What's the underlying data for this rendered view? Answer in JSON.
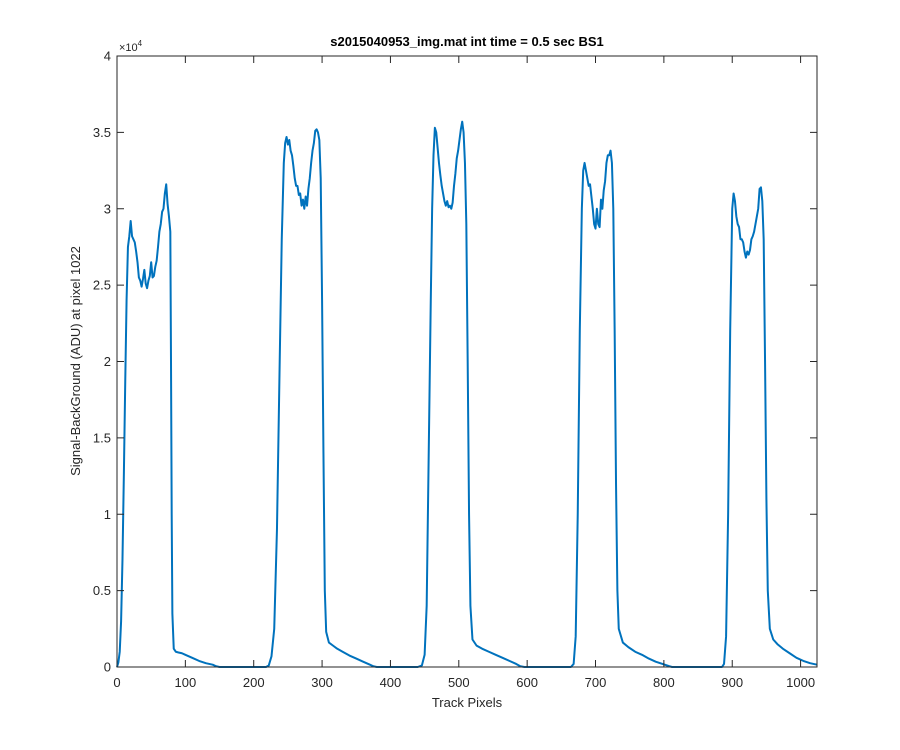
{
  "chart_data": {
    "type": "line",
    "title": "s2015040953_img.mat int time = 0.5 sec   BS1",
    "xlabel": "Track Pixels",
    "ylabel": "Signal-BackGround (ADU) at pixel 1022",
    "xlim": [
      0,
      1024
    ],
    "ylim": [
      0,
      40000
    ],
    "xticks": [
      0,
      100,
      200,
      300,
      400,
      500,
      600,
      700,
      800,
      900,
      1000
    ],
    "xtick_labels": [
      "0",
      "100",
      "200",
      "300",
      "400",
      "500",
      "600",
      "700",
      "800",
      "900",
      "1000"
    ],
    "yticks": [
      0,
      5000,
      10000,
      15000,
      20000,
      25000,
      30000,
      35000,
      40000
    ],
    "ytick_labels": [
      "0",
      "0.5",
      "1",
      "1.5",
      "2",
      "2.5",
      "3",
      "3.5",
      "4"
    ],
    "y_exponent_label": "×10",
    "y_exponent_power": "4",
    "grid": false,
    "series": [
      {
        "color": "#0072BD",
        "points": [
          [
            0,
            0
          ],
          [
            2,
            300
          ],
          [
            4,
            1000
          ],
          [
            6,
            3000
          ],
          [
            8,
            7000
          ],
          [
            10,
            12500
          ],
          [
            12,
            18500
          ],
          [
            14,
            24000
          ],
          [
            16,
            27500
          ],
          [
            18,
            28200
          ],
          [
            20,
            29200
          ],
          [
            22,
            28200
          ],
          [
            24,
            28000
          ],
          [
            26,
            27800
          ],
          [
            28,
            27200
          ],
          [
            30,
            26500
          ],
          [
            32,
            25500
          ],
          [
            34,
            25300
          ],
          [
            36,
            24900
          ],
          [
            38,
            25400
          ],
          [
            40,
            26000
          ],
          [
            42,
            25100
          ],
          [
            44,
            24800
          ],
          [
            46,
            25300
          ],
          [
            48,
            25600
          ],
          [
            50,
            26500
          ],
          [
            52,
            25500
          ],
          [
            54,
            25600
          ],
          [
            56,
            26200
          ],
          [
            58,
            26600
          ],
          [
            60,
            27500
          ],
          [
            62,
            28500
          ],
          [
            64,
            29000
          ],
          [
            66,
            29800
          ],
          [
            68,
            30000
          ],
          [
            70,
            31000
          ],
          [
            72,
            31600
          ],
          [
            74,
            30300
          ],
          [
            76,
            29500
          ],
          [
            78,
            28500
          ],
          [
            79,
            20000
          ],
          [
            80,
            10000
          ],
          [
            81,
            3500
          ],
          [
            83,
            1200
          ],
          [
            86,
            1000
          ],
          [
            90,
            950
          ],
          [
            95,
            900
          ],
          [
            100,
            800
          ],
          [
            110,
            600
          ],
          [
            120,
            400
          ],
          [
            130,
            250
          ],
          [
            140,
            150
          ],
          [
            145,
            50
          ],
          [
            150,
            0
          ],
          [
            218,
            0
          ],
          [
            222,
            100
          ],
          [
            226,
            700
          ],
          [
            230,
            2500
          ],
          [
            234,
            9000
          ],
          [
            238,
            20000
          ],
          [
            241,
            28000
          ],
          [
            244,
            33000
          ],
          [
            246,
            34300
          ],
          [
            248,
            34700
          ],
          [
            250,
            34200
          ],
          [
            252,
            34500
          ],
          [
            254,
            33800
          ],
          [
            256,
            33500
          ],
          [
            258,
            32800
          ],
          [
            260,
            32000
          ],
          [
            262,
            31500
          ],
          [
            264,
            31500
          ],
          [
            266,
            30900
          ],
          [
            268,
            31000
          ],
          [
            270,
            30200
          ],
          [
            272,
            30600
          ],
          [
            274,
            30000
          ],
          [
            276,
            30800
          ],
          [
            278,
            30200
          ],
          [
            280,
            31300
          ],
          [
            282,
            32000
          ],
          [
            284,
            33000
          ],
          [
            286,
            33800
          ],
          [
            288,
            34300
          ],
          [
            290,
            35100
          ],
          [
            292,
            35200
          ],
          [
            294,
            35000
          ],
          [
            296,
            34500
          ],
          [
            298,
            32000
          ],
          [
            300,
            24000
          ],
          [
            302,
            14000
          ],
          [
            304,
            5000
          ],
          [
            306,
            2300
          ],
          [
            310,
            1600
          ],
          [
            316,
            1400
          ],
          [
            322,
            1200
          ],
          [
            330,
            1000
          ],
          [
            340,
            750
          ],
          [
            350,
            550
          ],
          [
            360,
            350
          ],
          [
            370,
            150
          ],
          [
            375,
            50
          ],
          [
            380,
            0
          ],
          [
            440,
            0
          ],
          [
            446,
            100
          ],
          [
            450,
            800
          ],
          [
            453,
            4000
          ],
          [
            456,
            14000
          ],
          [
            459,
            24000
          ],
          [
            461,
            30000
          ],
          [
            463,
            33500
          ],
          [
            465,
            35300
          ],
          [
            467,
            35000
          ],
          [
            469,
            34000
          ],
          [
            471,
            33000
          ],
          [
            473,
            32200
          ],
          [
            475,
            31500
          ],
          [
            477,
            31000
          ],
          [
            479,
            30500
          ],
          [
            481,
            30200
          ],
          [
            483,
            30500
          ],
          [
            485,
            30100
          ],
          [
            487,
            30200
          ],
          [
            489,
            30000
          ],
          [
            491,
            30400
          ],
          [
            493,
            31500
          ],
          [
            495,
            32300
          ],
          [
            497,
            33300
          ],
          [
            499,
            33800
          ],
          [
            501,
            34500
          ],
          [
            503,
            35200
          ],
          [
            505,
            35700
          ],
          [
            507,
            35000
          ],
          [
            509,
            33000
          ],
          [
            511,
            29000
          ],
          [
            513,
            20000
          ],
          [
            515,
            10000
          ],
          [
            517,
            4000
          ],
          [
            520,
            1800
          ],
          [
            526,
            1400
          ],
          [
            534,
            1200
          ],
          [
            544,
            1000
          ],
          [
            554,
            800
          ],
          [
            564,
            600
          ],
          [
            574,
            400
          ],
          [
            584,
            200
          ],
          [
            590,
            50
          ],
          [
            596,
            0
          ],
          [
            664,
            0
          ],
          [
            668,
            200
          ],
          [
            671,
            2000
          ],
          [
            674,
            10000
          ],
          [
            677,
            22000
          ],
          [
            680,
            30000
          ],
          [
            682,
            32500
          ],
          [
            684,
            33000
          ],
          [
            686,
            32500
          ],
          [
            688,
            32000
          ],
          [
            690,
            31500
          ],
          [
            692,
            31600
          ],
          [
            694,
            30800
          ],
          [
            696,
            30000
          ],
          [
            698,
            29000
          ],
          [
            700,
            28700
          ],
          [
            702,
            30000
          ],
          [
            704,
            29000
          ],
          [
            706,
            28800
          ],
          [
            708,
            30600
          ],
          [
            710,
            30000
          ],
          [
            712,
            31200
          ],
          [
            714,
            31800
          ],
          [
            716,
            33000
          ],
          [
            718,
            33500
          ],
          [
            720,
            33500
          ],
          [
            722,
            33800
          ],
          [
            724,
            33000
          ],
          [
            726,
            30000
          ],
          [
            728,
            22000
          ],
          [
            730,
            12000
          ],
          [
            732,
            5000
          ],
          [
            734,
            2500
          ],
          [
            740,
            1600
          ],
          [
            748,
            1300
          ],
          [
            758,
            1000
          ],
          [
            768,
            800
          ],
          [
            778,
            550
          ],
          [
            788,
            350
          ],
          [
            798,
            200
          ],
          [
            808,
            50
          ],
          [
            812,
            0
          ],
          [
            885,
            0
          ],
          [
            888,
            200
          ],
          [
            891,
            2000
          ],
          [
            894,
            10000
          ],
          [
            897,
            22000
          ],
          [
            900,
            30000
          ],
          [
            902,
            31000
          ],
          [
            904,
            30500
          ],
          [
            906,
            29500
          ],
          [
            908,
            29000
          ],
          [
            910,
            28800
          ],
          [
            912,
            28000
          ],
          [
            914,
            28000
          ],
          [
            916,
            27800
          ],
          [
            918,
            27200
          ],
          [
            920,
            26800
          ],
          [
            922,
            27200
          ],
          [
            924,
            27000
          ],
          [
            926,
            27300
          ],
          [
            928,
            28000
          ],
          [
            930,
            28200
          ],
          [
            932,
            28500
          ],
          [
            934,
            29000
          ],
          [
            936,
            29500
          ],
          [
            938,
            30000
          ],
          [
            940,
            31300
          ],
          [
            942,
            31400
          ],
          [
            944,
            30500
          ],
          [
            946,
            28000
          ],
          [
            948,
            20000
          ],
          [
            950,
            11000
          ],
          [
            952,
            5000
          ],
          [
            955,
            2500
          ],
          [
            960,
            1800
          ],
          [
            966,
            1500
          ],
          [
            974,
            1200
          ],
          [
            984,
            900
          ],
          [
            994,
            600
          ],
          [
            1004,
            400
          ],
          [
            1014,
            250
          ],
          [
            1024,
            150
          ]
        ]
      }
    ]
  }
}
